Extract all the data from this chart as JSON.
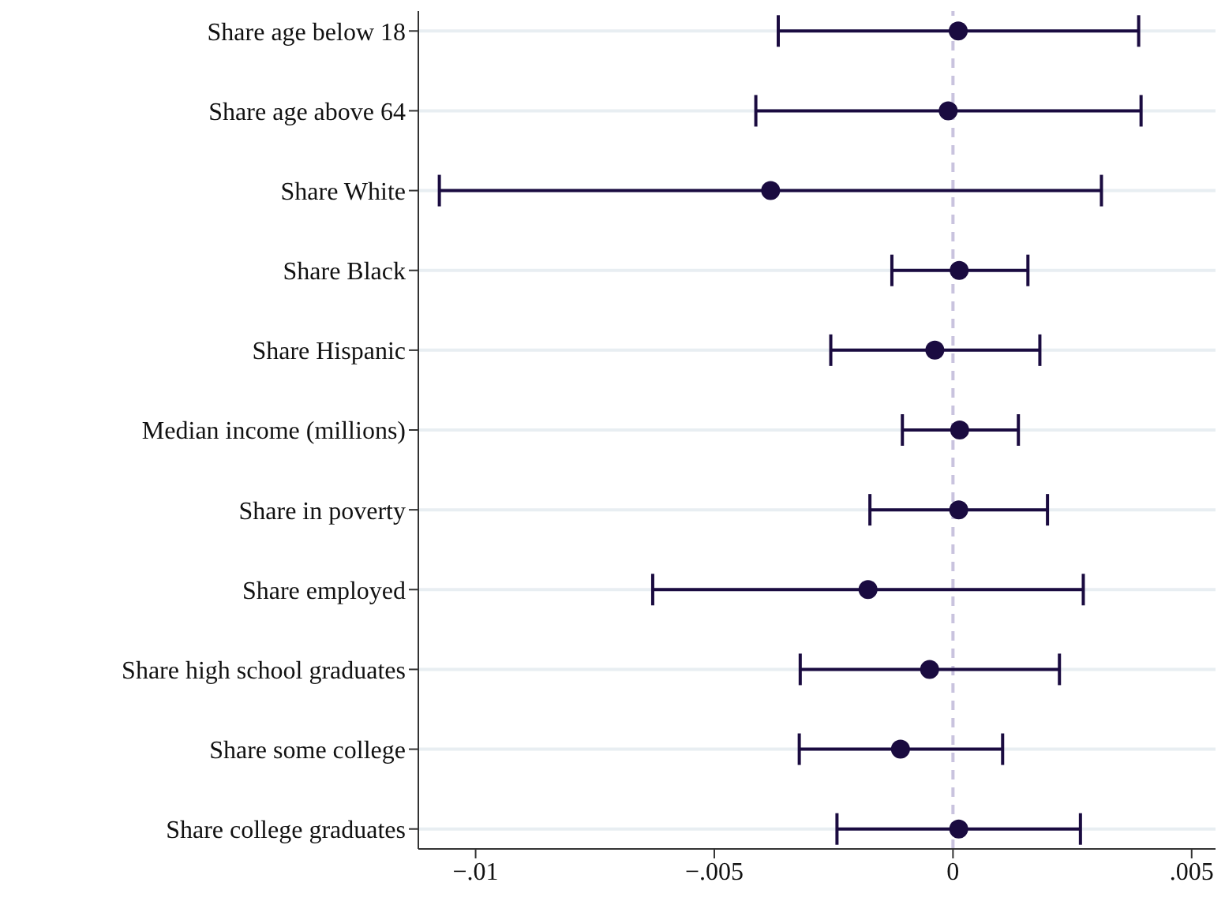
{
  "chart_data": {
    "type": "scatter",
    "orientation": "horizontal",
    "categories": [
      "Share age below 18",
      "Share age above 64",
      "Share White",
      "Share Black",
      "Share Hispanic",
      "Median income (millions)",
      "Share in poverty",
      "Share employed",
      "Share high school graduates",
      "Share some college",
      "Share college graduates"
    ],
    "series": [
      {
        "color": "#1a0b40",
        "values": [
          0.00011,
          -0.0001,
          -0.00382,
          0.00013,
          -0.00038,
          0.00014,
          0.00012,
          -0.00178,
          -0.00049,
          -0.0011,
          0.00012
        ],
        "errors": [
          [
            -0.00366,
            0.00389
          ],
          [
            -0.00413,
            0.00394
          ],
          [
            -0.01076,
            0.00311
          ],
          [
            -0.00128,
            0.00157
          ],
          [
            -0.00256,
            0.00182
          ],
          [
            -0.00106,
            0.00137
          ],
          [
            -0.00174,
            0.00198
          ],
          [
            -0.00629,
            0.00273
          ],
          [
            -0.0032,
            0.00223
          ],
          [
            -0.00322,
            0.00104
          ],
          [
            -0.00243,
            0.00267
          ]
        ]
      }
    ],
    "xlim": [
      -0.0112,
      0.0055
    ],
    "xticks": [
      {
        "value": -0.01,
        "label": "−.01"
      },
      {
        "value": -0.005,
        "label": "−.005"
      },
      0,
      {
        "value": 0.005,
        "label": ".005"
      }
    ],
    "ref_lines": [
      {
        "axis": "x",
        "value": 0,
        "color": "#c9c3de",
        "line_style": "dashed"
      }
    ],
    "grid": "y",
    "marker": "circle"
  }
}
